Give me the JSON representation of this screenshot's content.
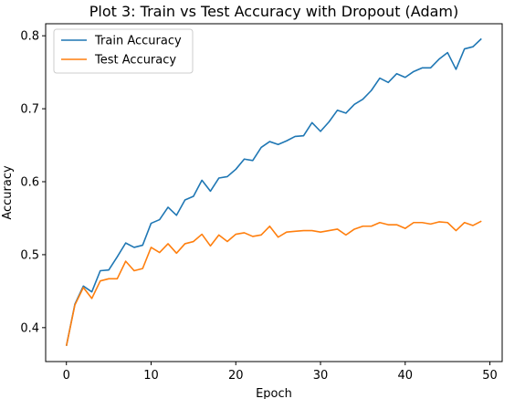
{
  "chart_data": {
    "type": "line",
    "title": "Plot 3: Train vs Test Accuracy with Dropout (Adam)",
    "xlabel": "Epoch",
    "ylabel": "Accuracy",
    "xlim": [
      -2.45,
      51.45
    ],
    "ylim": [
      0.3535,
      0.8165
    ],
    "xticks": [
      0,
      10,
      20,
      30,
      40,
      50
    ],
    "yticks": [
      0.4,
      0.5,
      0.6,
      0.7,
      0.8
    ],
    "xtick_labels": [
      "0",
      "10",
      "20",
      "30",
      "40",
      "50"
    ],
    "ytick_labels": [
      "0.4",
      "0.5",
      "0.6",
      "0.7",
      "0.8"
    ],
    "grid": false,
    "legend_position": "upper-left",
    "x": [
      0,
      1,
      2,
      3,
      4,
      5,
      6,
      7,
      8,
      9,
      10,
      11,
      12,
      13,
      14,
      15,
      16,
      17,
      18,
      19,
      20,
      21,
      22,
      23,
      24,
      25,
      26,
      27,
      28,
      29,
      30,
      31,
      32,
      33,
      34,
      35,
      36,
      37,
      38,
      39,
      40,
      41,
      42,
      43,
      44,
      45,
      46,
      47,
      48,
      49
    ],
    "series": [
      {
        "name": "Train Accuracy",
        "color": "#1f77b4",
        "values": [
          0.375,
          0.432,
          0.457,
          0.449,
          0.478,
          0.479,
          0.497,
          0.516,
          0.51,
          0.513,
          0.543,
          0.548,
          0.565,
          0.554,
          0.575,
          0.58,
          0.602,
          0.587,
          0.605,
          0.607,
          0.617,
          0.631,
          0.629,
          0.647,
          0.655,
          0.651,
          0.656,
          0.662,
          0.663,
          0.681,
          0.669,
          0.682,
          0.698,
          0.694,
          0.706,
          0.713,
          0.725,
          0.742,
          0.736,
          0.748,
          0.743,
          0.751,
          0.756,
          0.756,
          0.768,
          0.777,
          0.754,
          0.782,
          0.785,
          0.796
        ]
      },
      {
        "name": "Test Accuracy",
        "color": "#ff7f0e",
        "values": [
          0.375,
          0.431,
          0.455,
          0.44,
          0.464,
          0.467,
          0.467,
          0.491,
          0.478,
          0.481,
          0.51,
          0.503,
          0.515,
          0.502,
          0.515,
          0.518,
          0.528,
          0.512,
          0.527,
          0.518,
          0.528,
          0.53,
          0.525,
          0.527,
          0.539,
          0.524,
          0.531,
          0.532,
          0.533,
          0.533,
          0.531,
          0.533,
          0.535,
          0.527,
          0.535,
          0.539,
          0.539,
          0.544,
          0.541,
          0.541,
          0.536,
          0.544,
          0.544,
          0.542,
          0.545,
          0.544,
          0.533,
          0.544,
          0.54,
          0.546
        ]
      }
    ]
  }
}
